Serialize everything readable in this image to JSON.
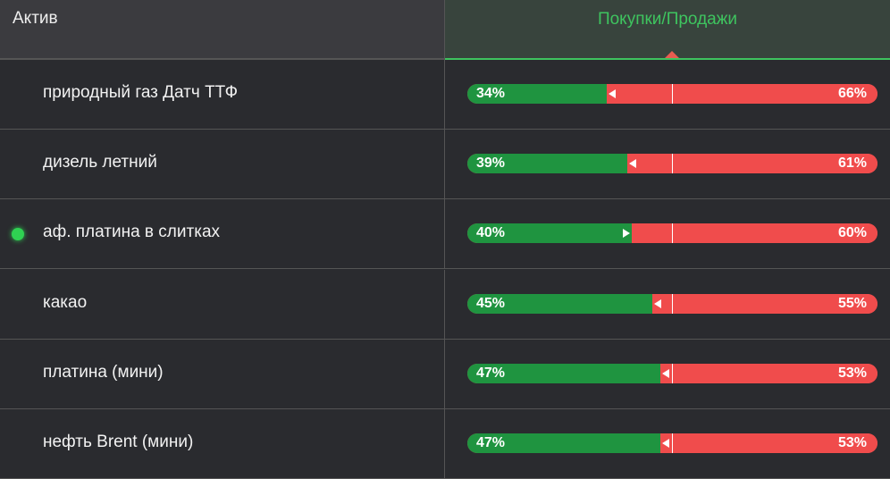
{
  "header": {
    "asset": "Актив",
    "sentiment": "Покупки/Продажи"
  },
  "rows": [
    {
      "name": "природный газ Датч ТТФ",
      "buy": 34,
      "buy_label": "34%",
      "sell": 66,
      "sell_label": "66%",
      "arrow": "left",
      "active": false
    },
    {
      "name": "дизель летний",
      "buy": 39,
      "buy_label": "39%",
      "sell": 61,
      "sell_label": "61%",
      "arrow": "left",
      "active": false
    },
    {
      "name": "аф. платина в слитках",
      "buy": 40,
      "buy_label": "40%",
      "sell": 60,
      "sell_label": "60%",
      "arrow": "right",
      "active": true
    },
    {
      "name": "какао",
      "buy": 45,
      "buy_label": "45%",
      "sell": 55,
      "sell_label": "55%",
      "arrow": "left",
      "active": false
    },
    {
      "name": "платина (мини)",
      "buy": 47,
      "buy_label": "47%",
      "sell": 53,
      "sell_label": "53%",
      "arrow": "left",
      "active": false
    },
    {
      "name": "нефть Brent (мини)",
      "buy": 47,
      "buy_label": "47%",
      "sell": 53,
      "sell_label": "53%",
      "arrow": "left",
      "active": false
    }
  ]
}
